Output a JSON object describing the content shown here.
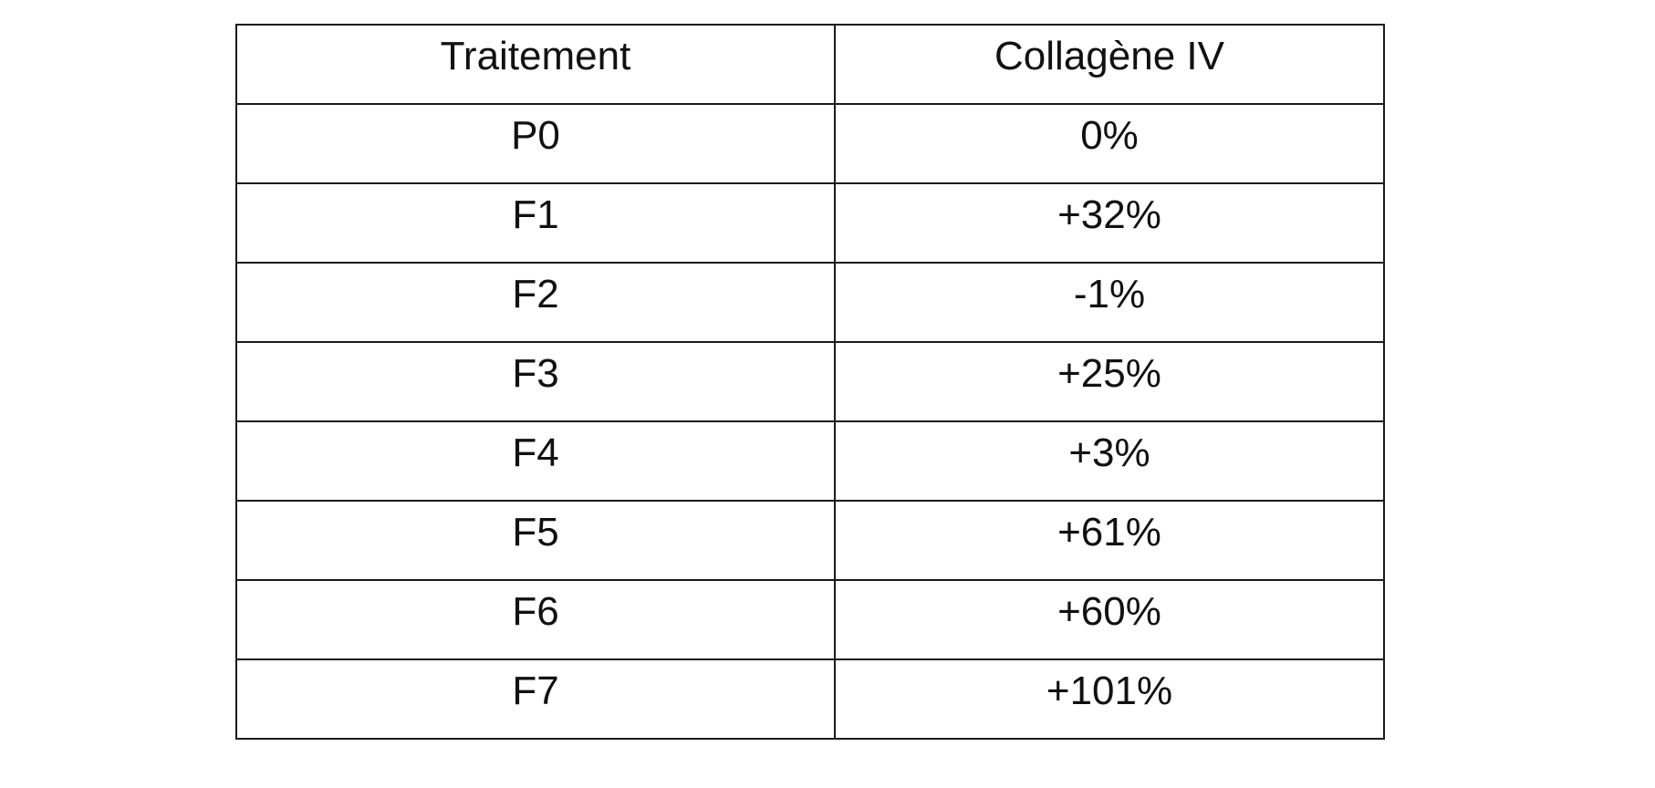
{
  "table": {
    "headers": [
      "Traitement",
      "Collagène IV"
    ],
    "rows": [
      [
        "P0",
        "0%"
      ],
      [
        "F1",
        "+32%"
      ],
      [
        "F2",
        "-1%"
      ],
      [
        "F3",
        "+25%"
      ],
      [
        "F4",
        "+3%"
      ],
      [
        "F5",
        "+61%"
      ],
      [
        "F6",
        "+60%"
      ],
      [
        "F7",
        "+101%"
      ]
    ]
  }
}
